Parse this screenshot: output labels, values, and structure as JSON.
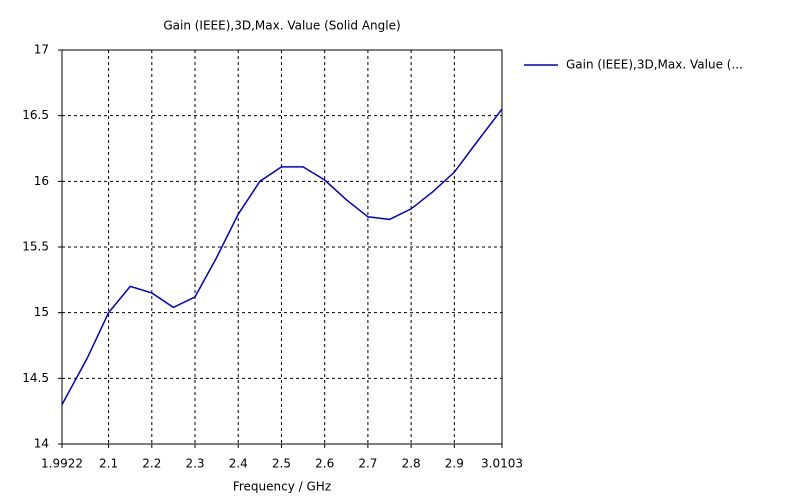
{
  "chart_data": {
    "type": "line",
    "title": "Gain (IEEE),3D,Max. Value (Solid Angle)",
    "x_label": "Frequency / GHz",
    "x": [
      1.9922,
      2.05,
      2.1,
      2.15,
      2.2,
      2.25,
      2.3,
      2.35,
      2.4,
      2.45,
      2.5,
      2.55,
      2.6,
      2.65,
      2.7,
      2.75,
      2.8,
      2.85,
      2.9,
      2.95,
      3.0103
    ],
    "series": [
      {
        "name": "Gain (IEEE),3D,Max. Value (...",
        "color": "#0000cc",
        "values": [
          14.3,
          14.65,
          15.0,
          15.2,
          15.15,
          15.04,
          15.12,
          15.42,
          15.75,
          16.0,
          16.11,
          16.11,
          16.01,
          15.86,
          15.73,
          15.71,
          15.79,
          15.92,
          16.07,
          16.29,
          16.55
        ]
      }
    ],
    "xlim": [
      1.9922,
      3.0103
    ],
    "xticks": [
      1.9922,
      2.1,
      2.2,
      2.3,
      2.4,
      2.5,
      2.6,
      2.7,
      2.8,
      2.9,
      3.0103
    ],
    "ylim": [
      14,
      17
    ],
    "yticks": [
      14,
      14.5,
      15,
      15.5,
      16,
      16.5,
      17
    ],
    "grid": true,
    "legend": "right"
  }
}
